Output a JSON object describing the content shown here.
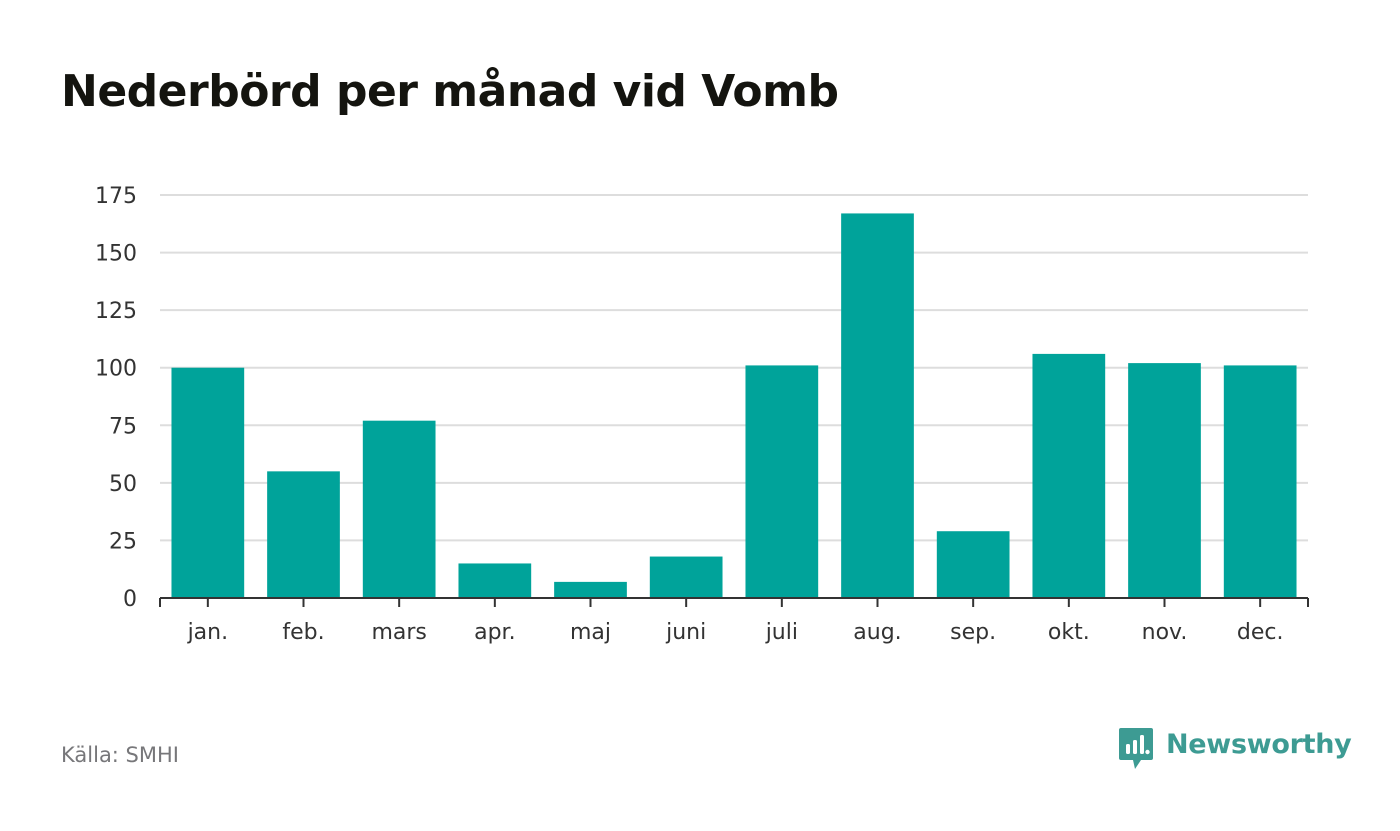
{
  "title": "Nederbörd per månad vid Vomb",
  "source": "Källa: SMHI",
  "brand": {
    "name": "Newsworthy",
    "icon": "newsworthy-logo-icon",
    "color": "#3d9b93"
  },
  "colors": {
    "bar": "#00a39a",
    "grid": "#dddddd",
    "axis": "#333333",
    "title": "#14140f",
    "source": "#77777a"
  },
  "chart_data": {
    "type": "bar",
    "title": "Nederbörd per månad vid Vomb",
    "xlabel": "",
    "ylabel": "",
    "categories": [
      "jan.",
      "feb.",
      "mars",
      "apr.",
      "maj",
      "juni",
      "juli",
      "aug.",
      "sep.",
      "okt.",
      "nov.",
      "dec."
    ],
    "values": [
      100,
      55,
      77,
      15,
      7,
      18,
      101,
      167,
      29,
      106,
      102,
      101
    ],
    "ylim": [
      0,
      175
    ],
    "yticks": [
      0,
      25,
      50,
      75,
      100,
      125,
      150,
      175
    ],
    "grid": true,
    "legend": "none"
  }
}
